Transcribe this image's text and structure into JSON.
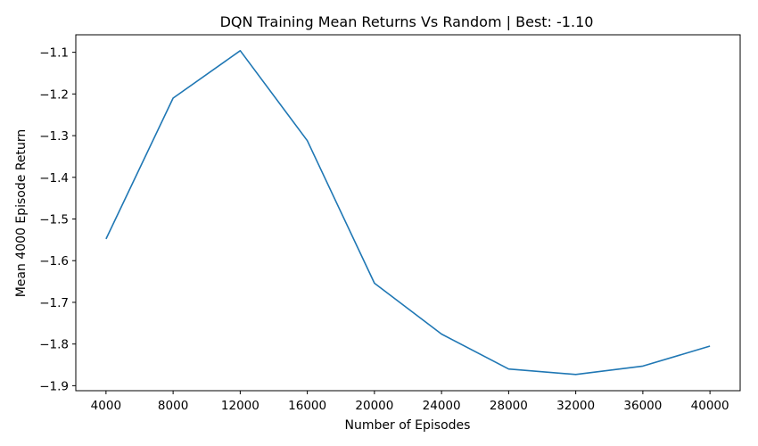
{
  "chart_data": {
    "type": "line",
    "title": "DQN Training Mean Returns Vs Random | Best: -1.10",
    "xlabel": "Number of Episodes",
    "ylabel": "Mean 4000 Episode Return",
    "x": [
      4000,
      8000,
      12000,
      16000,
      20000,
      24000,
      28000,
      32000,
      36000,
      40000
    ],
    "series": [
      {
        "values": [
          -1.548,
          -1.21,
          -1.096,
          -1.312,
          -1.654,
          -1.776,
          -1.86,
          -1.873,
          -1.853,
          -1.805
        ]
      }
    ],
    "xticks": [
      4000,
      8000,
      12000,
      16000,
      20000,
      24000,
      28000,
      32000,
      36000,
      40000
    ],
    "xtick_labels": [
      "4000",
      "8000",
      "12000",
      "16000",
      "20000",
      "24000",
      "28000",
      "32000",
      "36000",
      "40000"
    ],
    "yticks": [
      -1.1,
      -1.2,
      -1.3,
      -1.4,
      -1.5,
      -1.6,
      -1.7,
      -1.8,
      -1.9
    ],
    "ytick_labels": [
      "−1.1",
      "−1.2",
      "−1.3",
      "−1.4",
      "−1.5",
      "−1.6",
      "−1.7",
      "−1.8",
      "−1.9"
    ],
    "xlim": [
      2200,
      41800
    ],
    "ylim": [
      -1.912,
      -1.058
    ],
    "grid": false,
    "line_color": "#1f77b4"
  }
}
